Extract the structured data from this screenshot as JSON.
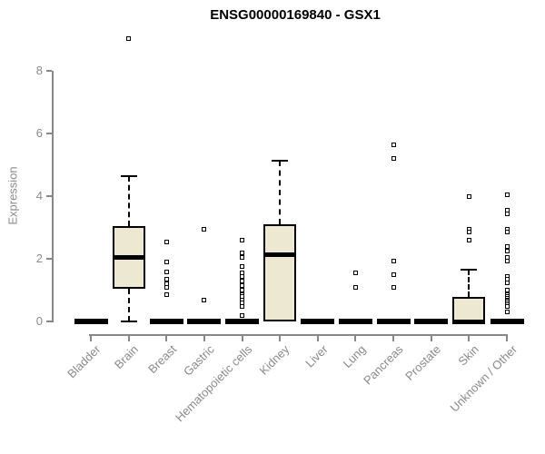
{
  "colors": {
    "box_fill": "#EDE8D1",
    "box_border": "#000000",
    "axis": "#878787",
    "axis_text": "#8a8a8a",
    "title_text": "#000000"
  },
  "chart_data": {
    "type": "boxplot",
    "title": "ENSG00000169840 - GSX1",
    "xlabel": "",
    "ylabel": "Expression",
    "ylim": [
      0,
      8
    ],
    "yticks": [
      0,
      2,
      4,
      6,
      8
    ],
    "grid": false,
    "legend": false,
    "categories": [
      "Bladder",
      "Brain",
      "Breast",
      "Gastric",
      "Hematopoietic cells",
      "Kidney",
      "Liver",
      "Lung",
      "Pancreas",
      "Prostate",
      "Skin",
      "Unknown / Other"
    ],
    "series": [
      {
        "category": "Bladder",
        "whisker_low": 0,
        "q1": 0,
        "median": 0,
        "q3": 0,
        "whisker_high": 0,
        "outliers": []
      },
      {
        "category": "Brain",
        "whisker_low": 0,
        "q1": 1.05,
        "median": 2.05,
        "q3": 3.05,
        "whisker_high": 4.65,
        "outliers": [
          9.05
        ]
      },
      {
        "category": "Breast",
        "whisker_low": 0,
        "q1": 0,
        "median": 0,
        "q3": 0,
        "whisker_high": 0,
        "outliers": [
          2.55,
          1.9,
          1.6,
          1.35,
          1.2,
          1.1,
          0.85
        ]
      },
      {
        "category": "Gastric",
        "whisker_low": 0,
        "q1": 0,
        "median": 0,
        "q3": 0,
        "whisker_high": 0,
        "outliers": [
          2.95,
          0.7
        ]
      },
      {
        "category": "Hematopoietic cells",
        "whisker_low": 0,
        "q1": 0,
        "median": 0,
        "q3": 0,
        "whisker_high": 0,
        "outliers": [
          2.6,
          2.2,
          2.05,
          1.75,
          1.55,
          1.45,
          1.3,
          1.15,
          1.05,
          1.0,
          0.9,
          0.85,
          0.8,
          0.7,
          0.6,
          0.5,
          0.2
        ]
      },
      {
        "category": "Kidney",
        "whisker_low": 0,
        "q1": 0,
        "median": 2.15,
        "q3": 3.1,
        "whisker_high": 5.15,
        "outliers": []
      },
      {
        "category": "Liver",
        "whisker_low": 0,
        "q1": 0,
        "median": 0,
        "q3": 0,
        "whisker_high": 0,
        "outliers": []
      },
      {
        "category": "Lung",
        "whisker_low": 0,
        "q1": 0,
        "median": 0,
        "q3": 0,
        "whisker_high": 0,
        "outliers": [
          1.55,
          1.1
        ]
      },
      {
        "category": "Pancreas",
        "whisker_low": 0,
        "q1": 0,
        "median": 0,
        "q3": 0,
        "whisker_high": 0,
        "outliers": [
          5.65,
          5.2,
          1.95,
          1.5,
          1.1
        ]
      },
      {
        "category": "Prostate",
        "whisker_low": 0,
        "q1": 0,
        "median": 0,
        "q3": 0,
        "whisker_high": 0,
        "outliers": []
      },
      {
        "category": "Skin",
        "whisker_low": 0,
        "q1": 0,
        "median": 0,
        "q3": 0.8,
        "whisker_high": 1.65,
        "outliers": [
          4.0,
          2.95,
          2.85,
          2.6
        ]
      },
      {
        "category": "Unknown / Other",
        "whisker_low": 0,
        "q1": 0,
        "median": 0,
        "q3": 0,
        "whisker_high": 0,
        "outliers": [
          4.05,
          3.55,
          3.45,
          2.95,
          2.85,
          2.4,
          2.25,
          2.05,
          1.95,
          1.45,
          1.35,
          1.25,
          1.0,
          0.9,
          0.85,
          0.8,
          0.75,
          0.7,
          0.65,
          0.6,
          0.55,
          0.5,
          0.3
        ]
      }
    ]
  }
}
